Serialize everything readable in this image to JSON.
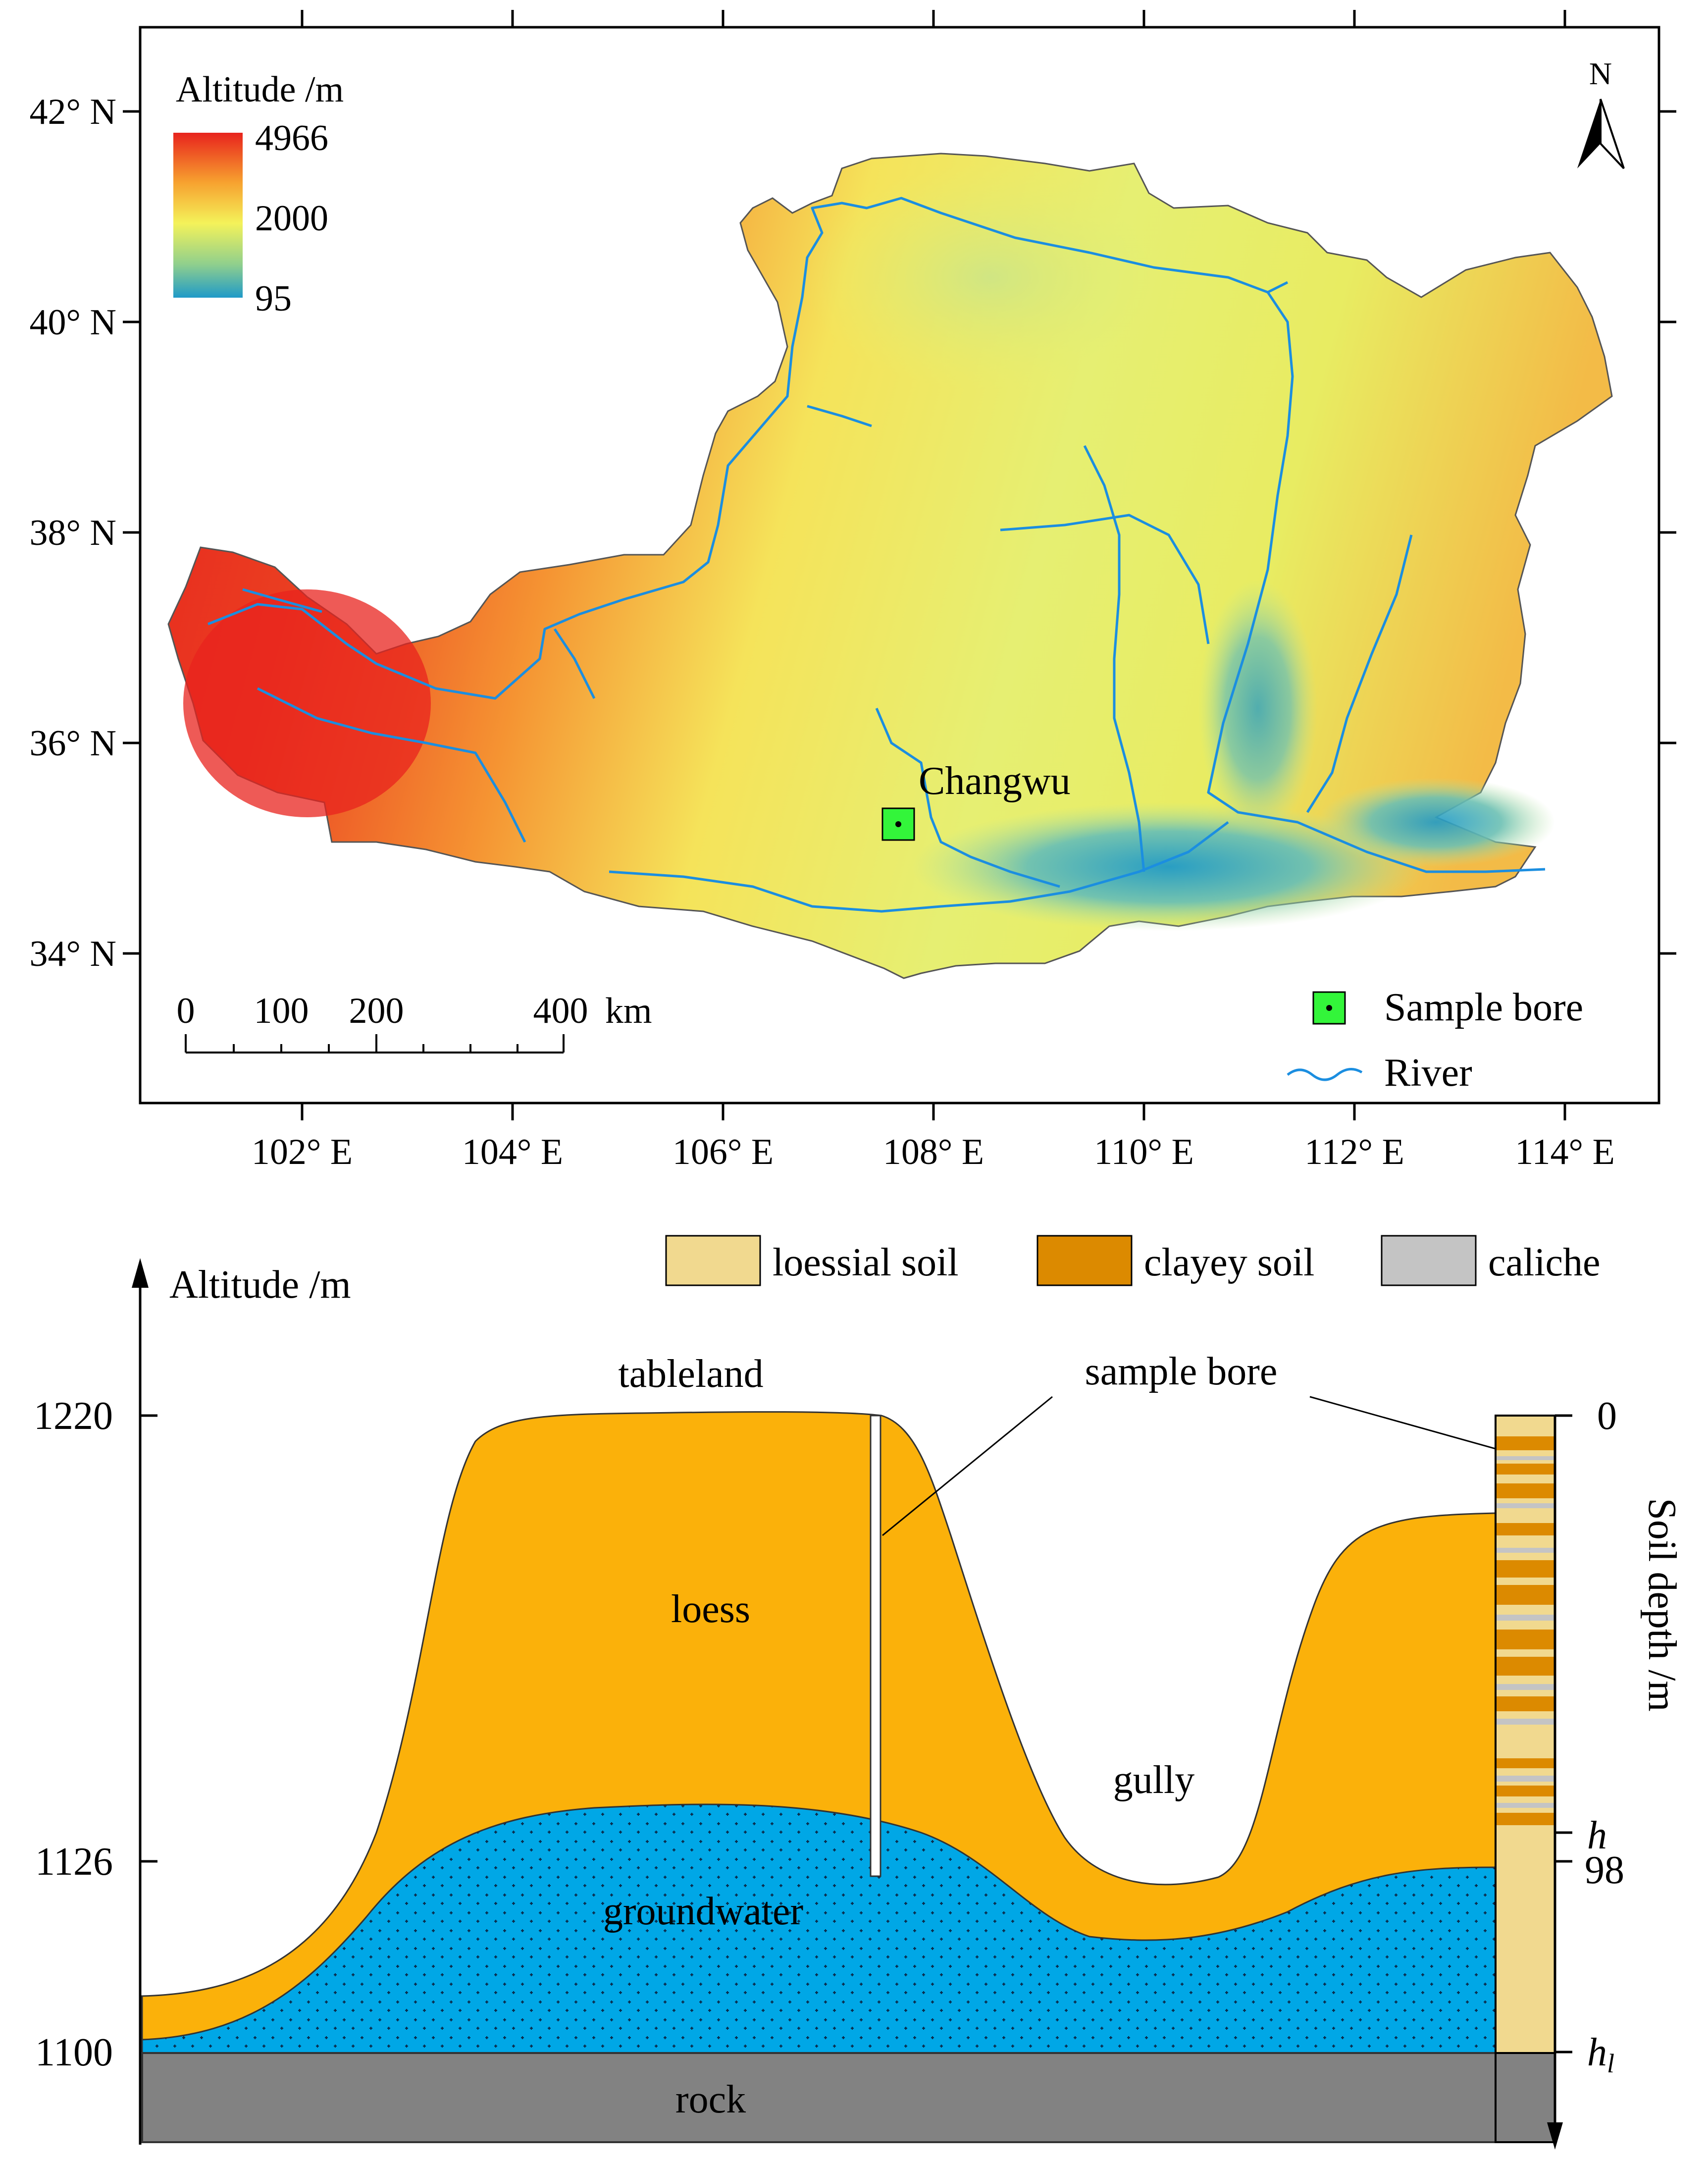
{
  "map": {
    "lat_labels": [
      "42° N",
      "40° N",
      "38° N",
      "36° N",
      "34° N"
    ],
    "lon_labels": [
      "102° E",
      "104° E",
      "106° E",
      "108° E",
      "110° E",
      "112° E",
      "114° E"
    ],
    "north_label": "N",
    "altitude_legend": {
      "title": "Altitude /m",
      "max": "4966",
      "mid": "2000",
      "min": "95",
      "colors": [
        "#e8231d",
        "#f7a12f",
        "#f4f25a",
        "#8fcf8d",
        "#1f9ac8"
      ]
    },
    "site_label": "Changwu",
    "scale_bar": {
      "ticks": [
        "0",
        "100",
        "200",
        "400"
      ],
      "unit": "km"
    },
    "legend": {
      "sample_bore": "Sample bore",
      "river": "River"
    }
  },
  "profile": {
    "y_axis_label": "Altitude /m",
    "y_ticks": [
      "1220",
      "1126",
      "1100"
    ],
    "legend": {
      "loessial_soil": "loessial soil",
      "clayey_soil": "clayey soil",
      "caliche": "caliche"
    },
    "labels": {
      "tableland": "tableland",
      "sample_bore": "sample bore",
      "loess": "loess",
      "gully": "gully",
      "groundwater": "groundwater",
      "rock": "rock"
    },
    "depth_axis": {
      "label": "Soil depth /m",
      "top": "0",
      "h": "h",
      "mid": "98",
      "hl_main": "h",
      "hl_sub": "l"
    },
    "colors": {
      "loess": "#fbb10a",
      "groundwater": "#00a7e6",
      "rock": "#828282",
      "loessial_soil": "#f1d98f",
      "clayey_soil": "#dc8a00",
      "caliche": "#c4c4c4"
    }
  }
}
